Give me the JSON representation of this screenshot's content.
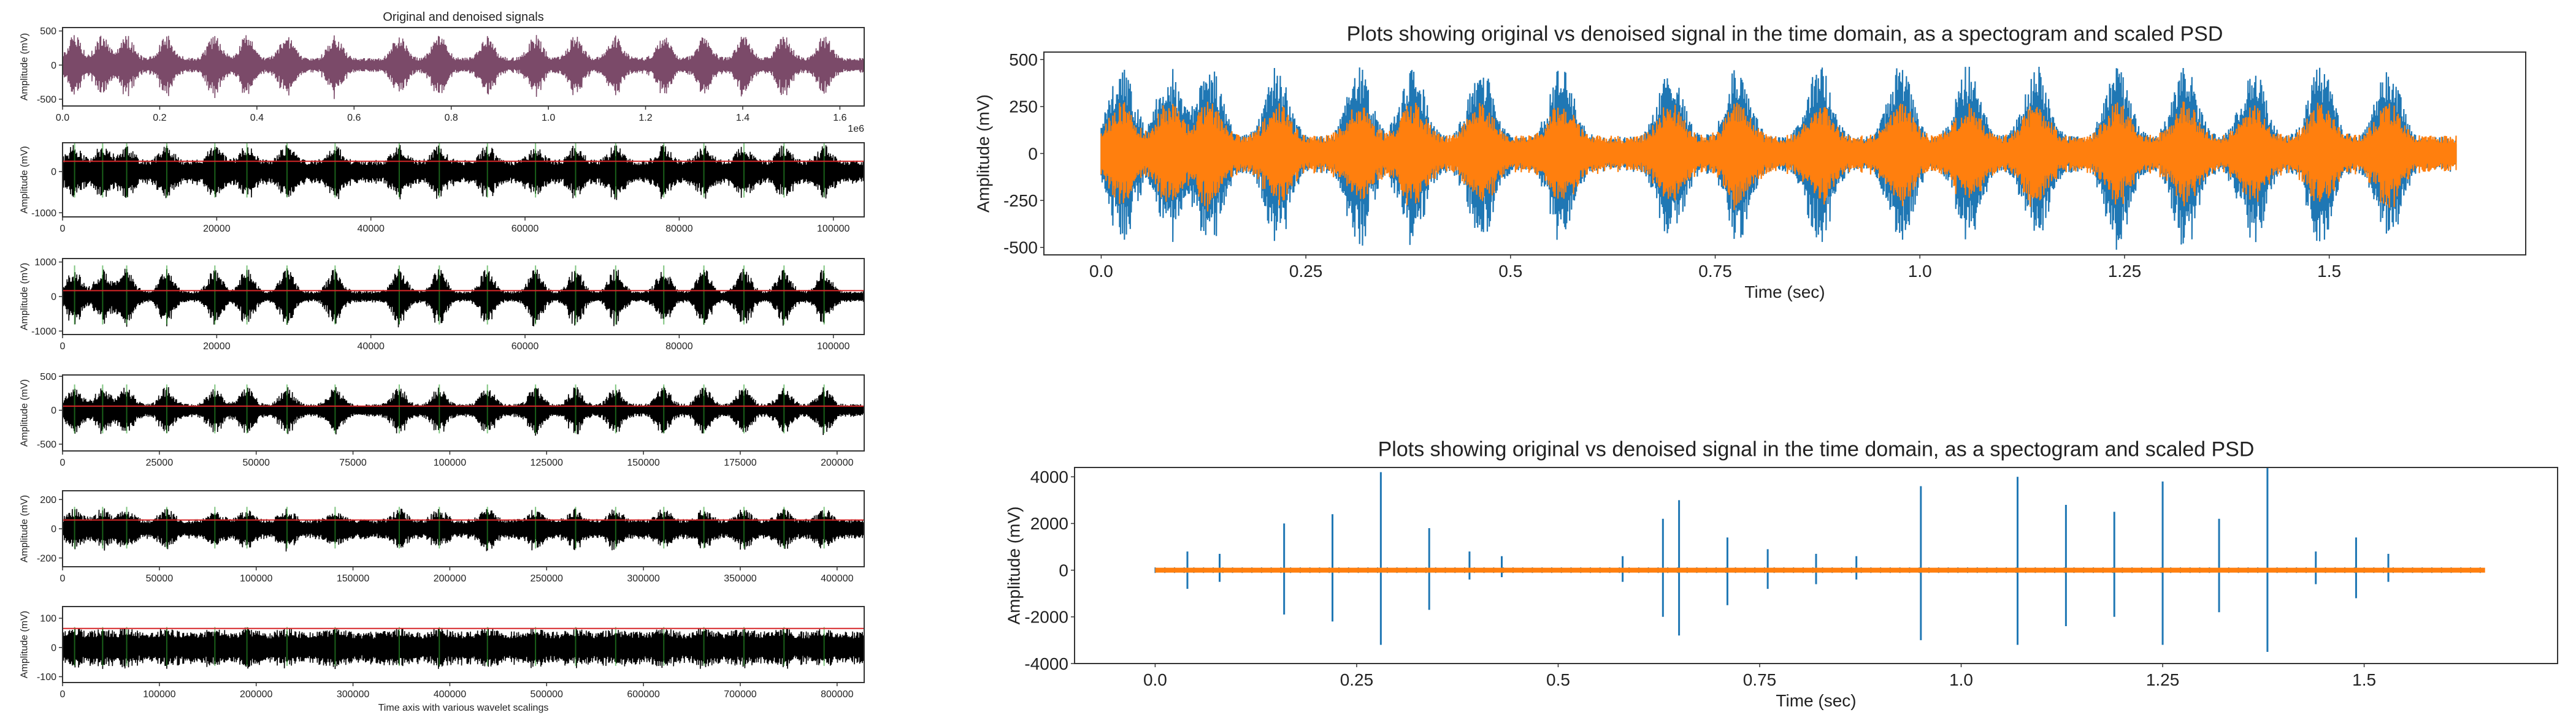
{
  "colors": {
    "original": "#1f77b4",
    "denoised": "#ff7f0e",
    "coeff_green": "#2ca02c",
    "threshold": "#d62728",
    "coeff_black": "#000000",
    "overlay": "#7b4a69"
  },
  "chart_data": [
    {
      "id": "left-1",
      "type": "line",
      "title": "Original and denoised signals",
      "xlabel": "",
      "ylabel": "Amplitude (mV)",
      "xlim": [
        0,
        1650000
      ],
      "ylim": [
        -600,
        550
      ],
      "xticks": [
        "0.0",
        "0.2",
        "0.4",
        "0.6",
        "0.8",
        "1.0",
        "1.2",
        "1.4",
        "1.6"
      ],
      "yticks": [
        "500",
        "0",
        "-500"
      ],
      "x_offset_label": "1e6",
      "series": [
        {
          "name": "",
          "color": "#7b4a69",
          "base_amplitude": 110,
          "peak_amplitude": 480
        }
      ]
    },
    {
      "id": "left-2",
      "type": "line",
      "title": "",
      "xlabel": "",
      "ylabel": "Amplitude (mV)",
      "xlim": [
        0,
        104000
      ],
      "ylim": [
        -1100,
        700
      ],
      "xticks": [
        "0",
        "20000",
        "40000",
        "60000",
        "80000",
        "100000"
      ],
      "yticks": [
        "0",
        "-1000"
      ],
      "threshold": 250,
      "series": [
        {
          "name": "",
          "color": "#000000",
          "base_amplitude": 280,
          "peak_amplitude": 700
        }
      ]
    },
    {
      "id": "left-3",
      "type": "line",
      "title": "",
      "xlabel": "",
      "ylabel": "Amplitude (mV)",
      "xlim": [
        0,
        104000
      ],
      "ylim": [
        -1100,
        1100
      ],
      "xticks": [
        "0",
        "20000",
        "40000",
        "60000",
        "80000",
        "100000"
      ],
      "yticks": [
        "1000",
        "0",
        "-1000"
      ],
      "threshold": 170,
      "series": [
        {
          "name": "",
          "color": "#000000",
          "base_amplitude": 150,
          "peak_amplitude": 900
        }
      ]
    },
    {
      "id": "left-4",
      "type": "line",
      "title": "",
      "xlabel": "",
      "ylabel": "Amplitude (mV)",
      "xlim": [
        0,
        207000
      ],
      "ylim": [
        -600,
        520
      ],
      "xticks": [
        "0",
        "25000",
        "50000",
        "75000",
        "100000",
        "125000",
        "150000",
        "175000",
        "200000"
      ],
      "yticks": [
        "500",
        "0",
        "-500"
      ],
      "threshold": 60,
      "series": [
        {
          "name": "",
          "color": "#000000",
          "base_amplitude": 90,
          "peak_amplitude": 380
        }
      ]
    },
    {
      "id": "left-5",
      "type": "line",
      "title": "",
      "xlabel": "",
      "ylabel": "Amplitude (mV)",
      "xlim": [
        0,
        414000
      ],
      "ylim": [
        -260,
        260
      ],
      "xticks": [
        "0",
        "50000",
        "100000",
        "150000",
        "200000",
        "250000",
        "300000",
        "350000",
        "400000"
      ],
      "yticks": [
        "200",
        "0",
        "-200"
      ],
      "threshold": 60,
      "series": [
        {
          "name": "",
          "color": "#000000",
          "base_amplitude": 65,
          "peak_amplitude": 150
        }
      ]
    },
    {
      "id": "left-6",
      "type": "line",
      "title": "",
      "xlabel": "Time axis with various wavelet scalings",
      "ylabel": "Amplitude (mV)",
      "xlim": [
        0,
        828000
      ],
      "ylim": [
        -120,
        140
      ],
      "xticks": [
        "0",
        "100000",
        "200000",
        "300000",
        "400000",
        "500000",
        "600000",
        "700000",
        "800000"
      ],
      "yticks": [
        "100",
        "0",
        "-100"
      ],
      "threshold": 65,
      "series": [
        {
          "name": "",
          "color": "#000000",
          "base_amplitude": 55,
          "peak_amplitude": 70
        }
      ]
    },
    {
      "id": "right-top",
      "type": "line",
      "title": "Plots showing original vs denoised signal in the time domain, as a spectogram and scaled PSD",
      "xlabel": "Time (sec)",
      "ylabel": "Amplitude (mV)",
      "xlim": [
        -0.07,
        1.74
      ],
      "ylim": [
        -540,
        540
      ],
      "xticks": [
        "0.0",
        "0.25",
        "0.5",
        "0.75",
        "1.0",
        "1.25",
        "1.5"
      ],
      "yticks": [
        "500",
        "250",
        "0",
        "-250",
        "-500"
      ],
      "series": [
        {
          "name": "",
          "color": "#1f77b4",
          "base_amplitude": 90,
          "peak_amplitude": 520
        },
        {
          "name": "",
          "color": "#ff7f0e",
          "base_amplitude": 95,
          "peak_amplitude": 300
        }
      ]
    },
    {
      "id": "right-bottom",
      "type": "line",
      "title": "Plots showing original vs denoised signal in the time domain, as a spectogram and scaled PSD",
      "xlabel": "Time (sec)",
      "ylabel": "Amplitude (mV)",
      "xlim": [
        -0.1,
        1.74
      ],
      "ylim": [
        -4000,
        4400
      ],
      "xticks": [
        "0.0",
        "0.25",
        "0.5",
        "0.75",
        "1.0",
        "1.25",
        "1.5"
      ],
      "yticks": [
        "4000",
        "2000",
        "0",
        "-2000",
        "-4000"
      ],
      "spikes": [
        [
          0.04,
          800,
          -800
        ],
        [
          0.08,
          700,
          -500
        ],
        [
          0.16,
          2000,
          -1900
        ],
        [
          0.22,
          2400,
          -2200
        ],
        [
          0.28,
          4200,
          -3200
        ],
        [
          0.34,
          1800,
          -1700
        ],
        [
          0.39,
          800,
          -400
        ],
        [
          0.43,
          600,
          -300
        ],
        [
          0.58,
          600,
          -500
        ],
        [
          0.63,
          2200,
          -2000
        ],
        [
          0.65,
          3000,
          -2800
        ],
        [
          0.71,
          1400,
          -1500
        ],
        [
          0.76,
          900,
          -800
        ],
        [
          0.82,
          700,
          -600
        ],
        [
          0.87,
          600,
          -400
        ],
        [
          0.95,
          3600,
          -3000
        ],
        [
          1.07,
          4000,
          -3200
        ],
        [
          1.13,
          2800,
          -2400
        ],
        [
          1.19,
          2500,
          -2000
        ],
        [
          1.25,
          3800,
          -3200
        ],
        [
          1.32,
          2200,
          -1800
        ],
        [
          1.38,
          4400,
          -3500
        ],
        [
          1.44,
          800,
          -600
        ],
        [
          1.49,
          1400,
          -1200
        ],
        [
          1.53,
          700,
          -500
        ]
      ],
      "series": [
        {
          "name": "",
          "color": "#1f77b4"
        },
        {
          "name": "",
          "color": "#ff7f0e",
          "value": 0
        }
      ]
    }
  ]
}
